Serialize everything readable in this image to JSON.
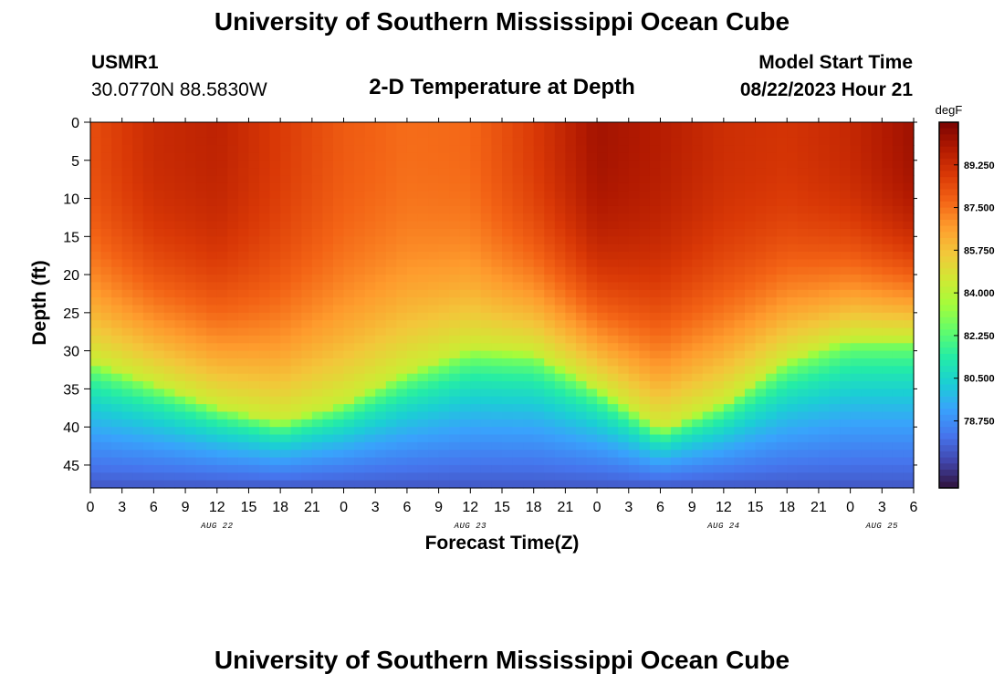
{
  "page": {
    "title": "University of Southern Mississippi Ocean Cube",
    "station": "USMR1",
    "coordinates": "30.0770N  88.5830W",
    "subtitle": "2-D Temperature at Depth",
    "model_start_label": "Model Start Time",
    "model_start_value": "08/22/2023 Hour 21",
    "footer_title": "University of Southern Mississippi Ocean Cube"
  },
  "chart_data": {
    "type": "heatmap",
    "title": "2-D Temperature at Depth",
    "xlabel": "Forecast Time(Z)",
    "ylabel": "Depth (ft)",
    "x_range_hours": [
      0,
      78
    ],
    "y_range_ft": [
      0,
      48
    ],
    "x_tick_labels": [
      "0",
      "3",
      "6",
      "9",
      "12",
      "15",
      "18",
      "21",
      "0",
      "3",
      "6",
      "9",
      "12",
      "15",
      "18",
      "21",
      "0",
      "3",
      "6",
      "9",
      "12",
      "15",
      "18",
      "21",
      "0",
      "3",
      "6"
    ],
    "y_ticks": [
      0,
      5,
      10,
      15,
      20,
      25,
      30,
      35,
      40,
      45
    ],
    "date_labels": [
      {
        "label": "AUG 22",
        "hour": 12
      },
      {
        "label": "AUG 23",
        "hour": 36
      },
      {
        "label": "AUG 24",
        "hour": 60
      },
      {
        "label": "AUG 25",
        "hour": 75
      }
    ],
    "colorbar": {
      "unit": "degF",
      "min": 76.0,
      "max": 91.0,
      "tick_values": [
        89.25,
        87.5,
        85.75,
        84.0,
        82.25,
        80.5,
        78.75
      ],
      "tick_labels": [
        "89.250",
        "87.500",
        "85.750",
        "84.000",
        "82.250",
        "80.500",
        "78.750"
      ],
      "colors": [
        "#30123b",
        "#4145ab",
        "#4675ed",
        "#39a2fc",
        "#1bcfd4",
        "#24eca6",
        "#61fc6c",
        "#a4fc3b",
        "#d1e834",
        "#f3c63a",
        "#fe9b2d",
        "#f36315",
        "#d93806",
        "#b11901",
        "#7a0402"
      ]
    },
    "thermocline": {
      "description": "Depth (ft) of the 84 degF isotherm, sampled every 6 forecast hours from hour 0 to hour 78",
      "hours": [
        0,
        6,
        12,
        18,
        24,
        30,
        36,
        42,
        48,
        54,
        60,
        66,
        72,
        78
      ],
      "depth_ft": [
        31.5,
        34.5,
        37.5,
        39.5,
        37.0,
        33.0,
        30.0,
        30.5,
        35.0,
        40.5,
        37.0,
        31.5,
        28.5,
        28.5
      ]
    },
    "surface_temp_degF": {
      "hours": [
        0,
        6,
        12,
        18,
        24,
        30,
        36,
        42,
        48,
        54,
        60,
        66,
        72,
        78
      ],
      "values": [
        88.3,
        89.3,
        89.6,
        88.8,
        88.0,
        87.6,
        87.7,
        88.8,
        90.2,
        89.8,
        89.2,
        89.0,
        89.4,
        90.3
      ]
    },
    "bottom_temp_degF": 77.5
  }
}
